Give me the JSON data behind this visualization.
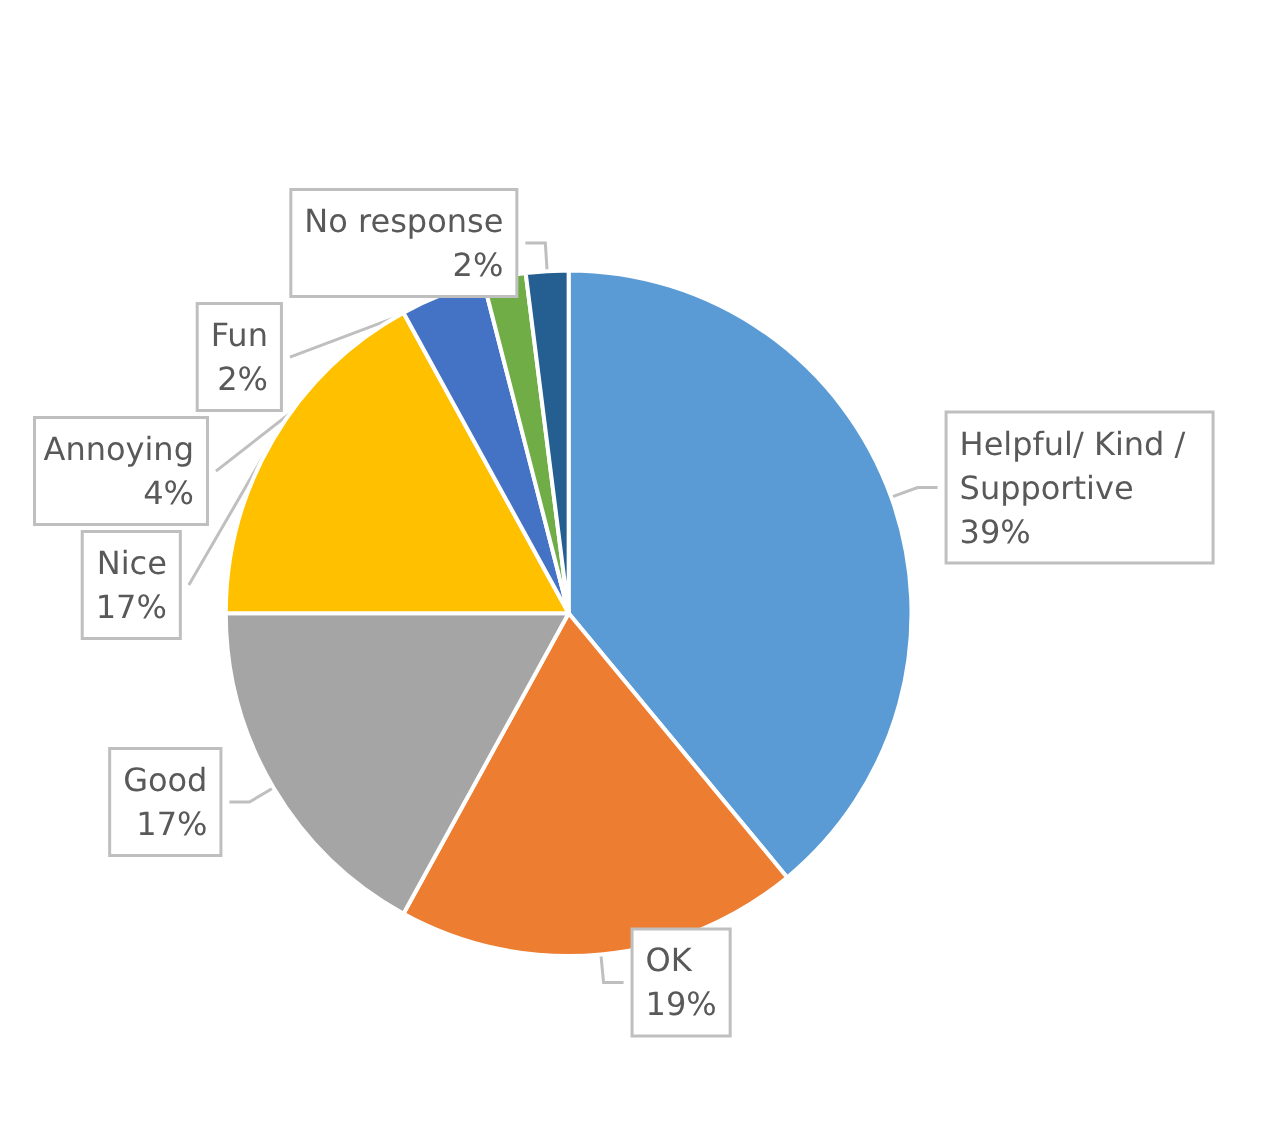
{
  "chart_data": {
    "type": "pie",
    "categories": [
      "Helpful/ Kind / Supportive",
      "OK",
      "Good",
      "Nice",
      "Annoying",
      "Fun",
      "No response"
    ],
    "values": [
      39,
      19,
      17,
      17,
      4,
      2,
      2
    ],
    "colors": [
      "#5b9bd5",
      "#ed7d31",
      "#a5a5a5",
      "#ffc000",
      "#4472c4",
      "#70ad47",
      "#255e91"
    ],
    "value_labels": [
      "39%",
      "19%",
      "17%",
      "17%",
      "4%",
      "2%",
      "2%"
    ],
    "legend": false
  }
}
